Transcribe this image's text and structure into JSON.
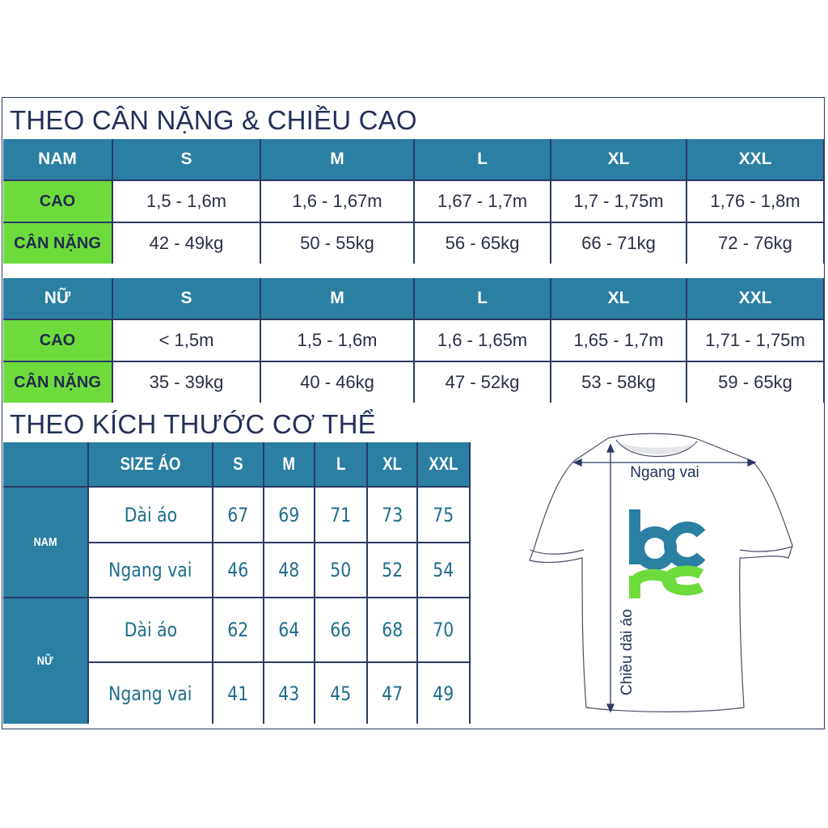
{
  "section1": {
    "title": "THEO CÂN NẶNG & CHIỀU CAO",
    "tables": [
      {
        "header": [
          "NAM",
          "S",
          "M",
          "L",
          "XL",
          "XXL"
        ],
        "rows": [
          {
            "label": "CAO",
            "values": [
              "1,5 - 1,6m",
              "1,6 - 1,67m",
              "1,67 - 1,7m",
              "1,7 - 1,75m",
              "1,76 - 1,8m"
            ]
          },
          {
            "label": "CÂN NẶNG",
            "values": [
              "42 - 49kg",
              "50 - 55kg",
              "56 - 65kg",
              "66 - 71kg",
              "72 - 76kg"
            ]
          }
        ]
      },
      {
        "header": [
          "NỮ",
          "S",
          "M",
          "L",
          "XL",
          "XXL"
        ],
        "rows": [
          {
            "label": "CAO",
            "values": [
              "< 1,5m",
              "1,5 - 1,6m",
              "1,6 - 1,65m",
              "1,65 - 1,7m",
              "1,71 - 1,75m"
            ]
          },
          {
            "label": "CÂN NẶNG",
            "values": [
              "35 - 39kg",
              "40 - 46kg",
              "47 - 52kg",
              "53 - 58kg",
              "59 - 65kg"
            ]
          }
        ]
      }
    ]
  },
  "section2": {
    "title": "THEO KÍCH THƯỚC CƠ THỂ",
    "header": [
      "SIZE ÁO",
      "S",
      "M",
      "L",
      "XL",
      "XXL"
    ],
    "groups": [
      {
        "label": "NAM",
        "rows": [
          {
            "label": "Dài áo",
            "values": [
              "67",
              "69",
              "71",
              "73",
              "75"
            ]
          },
          {
            "label": "Ngang vai",
            "values": [
              "46",
              "48",
              "50",
              "52",
              "54"
            ]
          }
        ]
      },
      {
        "label": "NỮ",
        "rows": [
          {
            "label": "Dài áo",
            "values": [
              "62",
              "64",
              "66",
              "68",
              "70"
            ]
          },
          {
            "label": "Ngang vai",
            "values": [
              "41",
              "43",
              "45",
              "47",
              "49"
            ]
          }
        ]
      }
    ]
  },
  "diagram": {
    "width_label": "Ngang vai",
    "length_label": "Chiều dài áo",
    "logo_text": "bcpc"
  },
  "colors": {
    "header": "#2a7fa3",
    "label_green": "#6edb3d",
    "logo_blue": "#2a7fa3",
    "logo_green": "#6edb3d",
    "border": "#2b3a66"
  }
}
